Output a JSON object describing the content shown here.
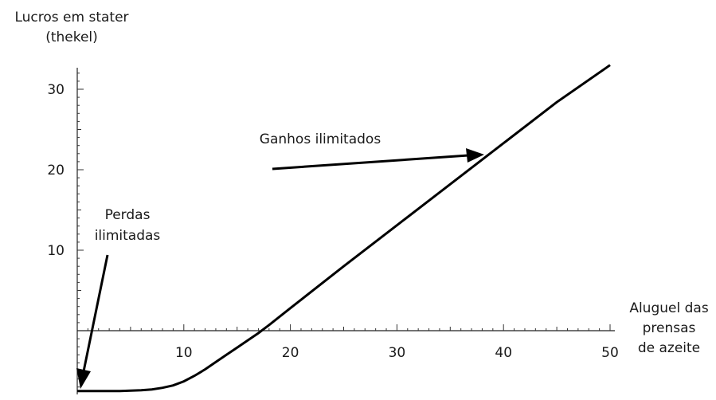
{
  "chart_data": {
    "type": "line",
    "ylabel_line1": "Lucros em stater",
    "ylabel_line2": "(thekel)",
    "xlabel_lines": [
      "Aluguel das",
      "prensas",
      "de azeite"
    ],
    "xlim": [
      0,
      50
    ],
    "ylim": [
      -8,
      33
    ],
    "x_ticks": [
      10,
      20,
      30,
      40,
      50
    ],
    "y_ticks": [
      10,
      20,
      30
    ],
    "x_tick_labels": [
      "10",
      "20",
      "30",
      "40",
      "50"
    ],
    "y_tick_labels": [
      "10",
      "20",
      "30"
    ],
    "grid": false,
    "series": [
      {
        "x": [
          0,
          4,
          6,
          7,
          8,
          9,
          10,
          11,
          12,
          13,
          14,
          15,
          16,
          17,
          18,
          20,
          25,
          30,
          35,
          40,
          45,
          50
        ],
        "y": [
          -7.5,
          -7.5,
          -7.4,
          -7.3,
          -7.1,
          -6.8,
          -6.3,
          -5.6,
          -4.8,
          -3.9,
          -3.0,
          -2.1,
          -1.2,
          -0.3,
          0.7,
          2.8,
          8.0,
          13.1,
          18.2,
          23.3,
          28.4,
          33.0
        ]
      }
    ],
    "annotations": [
      {
        "text": "Ganhos ilimitados"
      },
      {
        "text_line1": "Perdas",
        "text_line2": "ilimitadas"
      }
    ]
  }
}
